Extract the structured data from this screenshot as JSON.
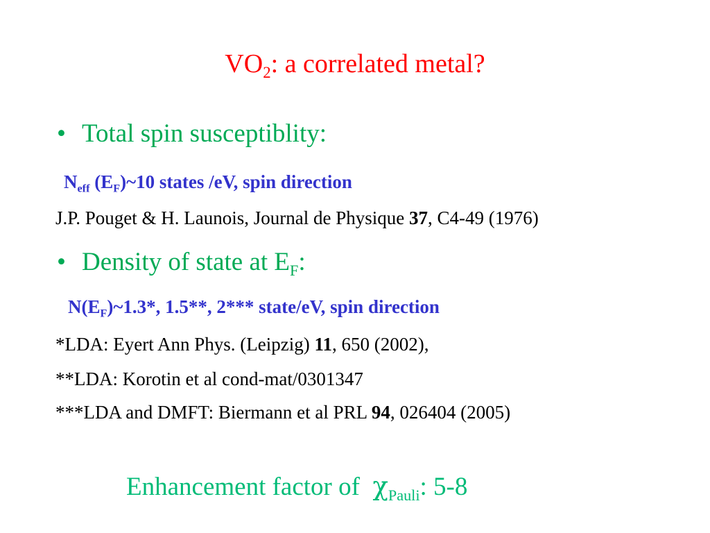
{
  "colors": {
    "title": "#ff0000",
    "bullet": "#00aa55",
    "formula": "#3333cc",
    "reference": "#000000",
    "footer": "#00bb77"
  },
  "title": {
    "prefix": "VO",
    "sub": "2",
    "suffix": ": a correlated metal?"
  },
  "bullet1": {
    "dot": "•",
    "text": "Total spin susceptiblity:"
  },
  "formula1": {
    "n": "N",
    "n_sub": "eff",
    "paren_open": " (E",
    "e_sub": "F",
    "rest": ")~10 states /eV, spin direction"
  },
  "ref1": {
    "text": "J.P. Pouget & H. Launois, Journal de Physique ",
    "volume": "37",
    "rest": ", C4-49 (1976)"
  },
  "bullet2": {
    "dot": "•",
    "text": "Density of state at E",
    "sub": "F",
    "suffix": ":"
  },
  "formula2": {
    "prefix": "N(E",
    "sub": "F",
    "rest": ")~1.3*, 1.5**, 2*** state/eV, spin direction"
  },
  "ref2": {
    "text": " *LDA: Eyert Ann Phys. (Leipzig) ",
    "volume": "11",
    "rest": ", 650 (2002),"
  },
  "ref3": {
    "text": "**LDA: Korotin et al cond-mat/0301347"
  },
  "ref4": {
    "text": "***LDA and DMFT: Biermann et al PRL ",
    "volume": "94",
    "rest": ", 026404 (2005)"
  },
  "footer": {
    "text": "Enhancement factor of  ",
    "chi": "χ",
    "sub": "Pauli",
    "rest": ": 5-8"
  }
}
